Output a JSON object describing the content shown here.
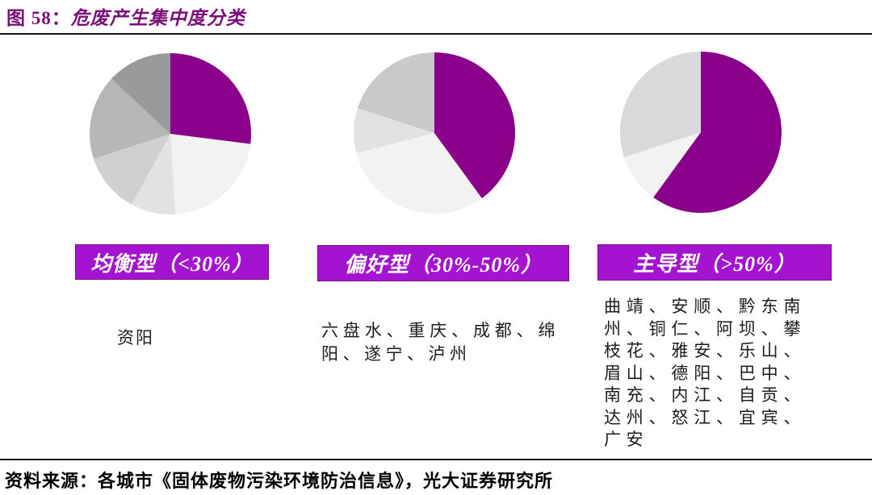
{
  "header": {
    "title_prefix": "图 58：",
    "title_main": "危废产生集中度分类"
  },
  "footer": {
    "source": "资料来源：各城市《固体废物污染环境防治信息》，光大证券研究所"
  },
  "colors": {
    "title_purple": "#7A0F7A",
    "pie_purple": "#8B008B",
    "banner_purple": "#A413CF",
    "rule_black": "#111111"
  },
  "groups": [
    {
      "banner_label": "均衡型（<30%）",
      "cities_text": "资阳",
      "cities": [
        "资阳"
      ]
    },
    {
      "banner_label": "偏好型（30%-50%）",
      "cities_text": "六盘水、重庆、成都、绵阳、遂宁、泸州",
      "cities": [
        "六盘水",
        "重庆",
        "成都",
        "绵阳",
        "遂宁",
        "泸州"
      ]
    },
    {
      "banner_label": "主导型（>50%）",
      "cities_text": "曲靖、安顺、黔东南州、铜仁、阿坝、攀枝花、雅安、乐山、眉山、德阳、巴中、南充、内江、自贡、达州、怒江、宜宾、广安",
      "cities": [
        "曲靖",
        "安顺",
        "黔东南州",
        "铜仁",
        "阿坝",
        "攀枝花",
        "雅安",
        "乐山",
        "眉山",
        "德阳",
        "巴中",
        "南充",
        "内江",
        "自贡",
        "达州",
        "怒江",
        "宜宾",
        "广安"
      ]
    }
  ],
  "chart_data": [
    {
      "type": "pie",
      "title": "均衡型（<30%）",
      "legend": "none",
      "start_angle_deg": 0,
      "direction": "clockwise",
      "values_percent": [
        27,
        22,
        9,
        12,
        17,
        13
      ],
      "colors": [
        "#8B008B",
        "#F2F2F2",
        "#E2E2E2",
        "#D0D0D0",
        "#B7B7B7",
        "#9A9A9A"
      ]
    },
    {
      "type": "pie",
      "title": "偏好型（30%-50%）",
      "legend": "none",
      "start_angle_deg": 0,
      "direction": "clockwise",
      "values_percent": [
        40,
        31,
        9,
        20
      ],
      "colors": [
        "#8B008B",
        "#F2F2F2",
        "#E2E2E2",
        "#C9C9C9"
      ]
    },
    {
      "type": "pie",
      "title": "主导型（>50%）",
      "legend": "none",
      "start_angle_deg": 0,
      "direction": "clockwise",
      "values_percent": [
        60,
        10,
        30
      ],
      "colors": [
        "#8B008B",
        "#F2F2F2",
        "#D9D9D9"
      ]
    }
  ]
}
